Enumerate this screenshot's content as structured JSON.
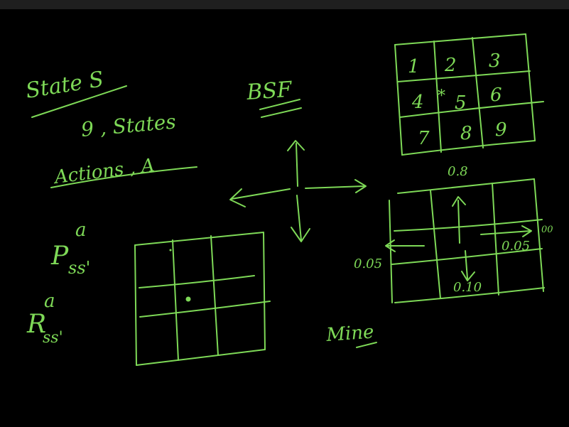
{
  "board": {
    "ink_color": "#7ed957",
    "background": "#000000",
    "toolbar_color": "#1f1f1f"
  },
  "left_notes": {
    "state_label": "State S",
    "states_count": "9 , States",
    "actions_label": "Actions , A",
    "transition_symbol": "P",
    "transition_superscript": "a",
    "transition_subscript": "ss'",
    "reward_symbol": "R",
    "reward_superscript": "a",
    "reward_subscript": "ss'"
  },
  "center": {
    "abbrev": "BSF",
    "mine_label": "Mine"
  },
  "numbered_grid": {
    "cells": [
      "1",
      "2",
      "3",
      "4",
      "5",
      "6",
      "7",
      "8",
      "9"
    ],
    "marker": "*"
  },
  "prob_grid": {
    "up": "0.8",
    "left": "0.05",
    "right": "0.05",
    "down": "0.10"
  }
}
